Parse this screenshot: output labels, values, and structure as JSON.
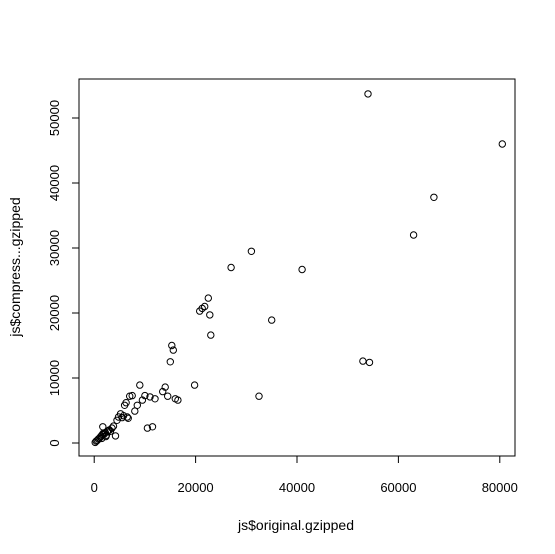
{
  "chart_data": {
    "type": "scatter",
    "title": "",
    "xlabel": "js$original.gzipped",
    "ylabel": "js$compress...gzipped",
    "xlim": [
      -3000,
      83000
    ],
    "ylim": [
      -2000,
      56000
    ],
    "xticks": [
      0,
      20000,
      40000,
      60000,
      80000
    ],
    "xtick_labels": [
      "0",
      "20000",
      "40000",
      "60000",
      "80000"
    ],
    "yticks": [
      0,
      10000,
      20000,
      30000,
      40000,
      50000
    ],
    "ytick_labels": [
      "0",
      "10000",
      "20000",
      "30000",
      "40000",
      "50000"
    ],
    "marker": "open-circle",
    "grid": false,
    "legend": "none",
    "point_color": "#000000",
    "series": [
      {
        "x": [
          200,
          400,
          600,
          800,
          1000,
          1200,
          1400,
          1600,
          1800,
          2000,
          2200,
          2400,
          2600,
          2800,
          3000,
          1500,
          1700,
          2300,
          3200,
          3500,
          3800,
          4200,
          4500,
          4800,
          5200,
          5500,
          5800,
          6000,
          6300,
          6500,
          6700,
          7000,
          7500,
          8000,
          8500,
          9000,
          9500,
          10000,
          10500,
          11000,
          11500,
          12000,
          13500,
          14000,
          14500,
          15000,
          15300,
          15600,
          16000,
          16500,
          19800,
          20800,
          21300,
          21800,
          22500,
          22800,
          23000,
          27000,
          31000,
          32500,
          35000,
          41000,
          53000,
          54000,
          54300,
          63000,
          67000,
          80500
        ],
        "y": [
          100,
          300,
          400,
          600,
          700,
          900,
          1100,
          1300,
          1500,
          1400,
          1600,
          1200,
          1800,
          1900,
          2000,
          700,
          2500,
          1000,
          1800,
          2300,
          2600,
          1100,
          3500,
          4000,
          4500,
          3900,
          4200,
          5800,
          6200,
          4000,
          3800,
          7200,
          7300,
          4900,
          5800,
          8900,
          6600,
          7300,
          2300,
          7100,
          2500,
          6800,
          7900,
          8600,
          7200,
          12500,
          15000,
          14300,
          6800,
          6600,
          8900,
          20300,
          20700,
          21000,
          22300,
          19700,
          16600,
          27000,
          29500,
          7200,
          18900,
          26700,
          12600,
          53700,
          12400,
          32000,
          37800,
          46000
        ]
      }
    ]
  }
}
